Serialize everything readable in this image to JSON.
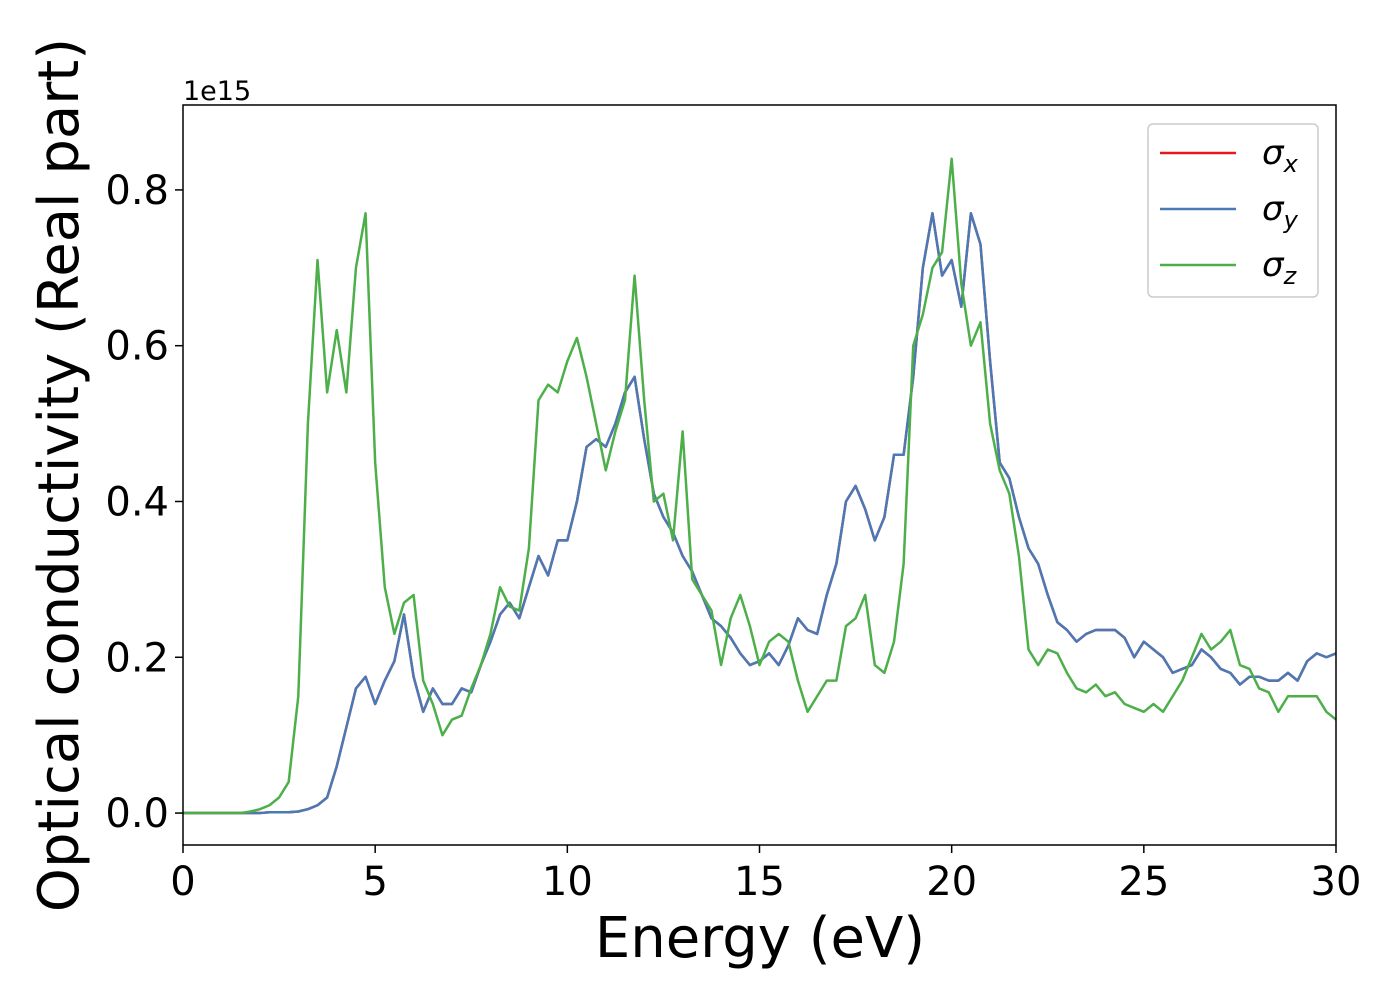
{
  "chart_data": {
    "type": "line",
    "xlabel": "Energy (eV)",
    "ylabel": "Optical conductivity (Real part)",
    "y_offset_label": "1e15",
    "xlim": [
      0,
      30
    ],
    "xticks": [
      0,
      5,
      10,
      15,
      20,
      25,
      30
    ],
    "ylim": [
      -0.041,
      0.909
    ],
    "yticks": [
      {
        "value": 0,
        "label": "0.0"
      },
      0.2,
      0.4,
      0.6,
      0.8
    ],
    "legend": "upper right",
    "grid": false,
    "x": [
      0,
      0.25,
      0.5,
      0.75,
      1,
      1.25,
      1.5,
      1.75,
      2,
      2.25,
      2.5,
      2.75,
      3,
      3.25,
      3.5,
      3.75,
      4,
      4.25,
      4.5,
      4.75,
      5,
      5.25,
      5.5,
      5.75,
      6,
      6.25,
      6.5,
      6.75,
      7,
      7.25,
      7.5,
      7.75,
      8,
      8.25,
      8.5,
      8.75,
      9,
      9.25,
      9.5,
      9.75,
      10,
      10.25,
      10.5,
      10.75,
      11,
      11.25,
      11.5,
      11.75,
      12,
      12.25,
      12.5,
      12.75,
      13,
      13.25,
      13.5,
      13.75,
      14,
      14.25,
      14.5,
      14.75,
      15,
      15.25,
      15.5,
      15.75,
      16,
      16.25,
      16.5,
      16.75,
      17,
      17.25,
      17.5,
      17.75,
      18,
      18.25,
      18.5,
      18.75,
      19,
      19.25,
      19.5,
      19.75,
      20,
      20.25,
      20.5,
      20.75,
      21,
      21.25,
      21.5,
      21.75,
      22,
      22.25,
      22.5,
      22.75,
      23,
      23.25,
      23.5,
      23.75,
      24,
      24.25,
      24.5,
      24.75,
      25,
      25.25,
      25.5,
      25.75,
      26,
      26.25,
      26.5,
      26.75,
      27,
      27.25,
      27.5,
      27.75,
      28,
      28.25,
      28.5,
      28.75,
      29,
      29.25,
      29.5,
      29.75,
      30
    ],
    "series": [
      {
        "name": "σx",
        "color": "#e41a1c",
        "values": [
          0,
          0,
          0,
          0,
          0,
          0,
          0,
          0,
          0,
          0.001,
          0.001,
          0.001,
          0.002,
          0.005,
          0.01,
          0.02,
          0.06,
          0.11,
          0.16,
          0.175,
          0.14,
          0.17,
          0.195,
          0.255,
          0.175,
          0.13,
          0.16,
          0.14,
          0.14,
          0.16,
          0.155,
          0.19,
          0.22,
          0.255,
          0.27,
          0.25,
          0.29,
          0.33,
          0.305,
          0.35,
          0.35,
          0.4,
          0.47,
          0.48,
          0.47,
          0.5,
          0.54,
          0.56,
          0.48,
          0.41,
          0.38,
          0.36,
          0.33,
          0.31,
          0.28,
          0.25,
          0.24,
          0.225,
          0.205,
          0.19,
          0.195,
          0.205,
          0.19,
          0.215,
          0.25,
          0.235,
          0.23,
          0.28,
          0.32,
          0.4,
          0.42,
          0.39,
          0.35,
          0.38,
          0.46,
          0.46,
          0.56,
          0.7,
          0.77,
          0.69,
          0.71,
          0.65,
          0.77,
          0.73,
          0.58,
          0.45,
          0.43,
          0.38,
          0.34,
          0.32,
          0.28,
          0.245,
          0.235,
          0.22,
          0.23,
          0.235,
          0.235,
          0.235,
          0.225,
          0.2,
          0.22,
          0.21,
          0.2,
          0.18,
          0.185,
          0.19,
          0.21,
          0.2,
          0.185,
          0.18,
          0.165,
          0.175,
          0.175,
          0.17,
          0.17,
          0.18,
          0.17,
          0.195,
          0.205,
          0.2,
          0.205
        ]
      },
      {
        "name": "σy",
        "color": "#4a7ab5",
        "values": [
          0,
          0,
          0,
          0,
          0,
          0,
          0,
          0,
          0,
          0.001,
          0.001,
          0.001,
          0.002,
          0.005,
          0.01,
          0.02,
          0.06,
          0.11,
          0.16,
          0.175,
          0.14,
          0.17,
          0.195,
          0.255,
          0.175,
          0.13,
          0.16,
          0.14,
          0.14,
          0.16,
          0.155,
          0.19,
          0.22,
          0.255,
          0.27,
          0.25,
          0.29,
          0.33,
          0.305,
          0.35,
          0.35,
          0.4,
          0.47,
          0.48,
          0.47,
          0.5,
          0.54,
          0.56,
          0.48,
          0.41,
          0.38,
          0.36,
          0.33,
          0.31,
          0.28,
          0.25,
          0.24,
          0.225,
          0.205,
          0.19,
          0.195,
          0.205,
          0.19,
          0.215,
          0.25,
          0.235,
          0.23,
          0.28,
          0.32,
          0.4,
          0.42,
          0.39,
          0.35,
          0.38,
          0.46,
          0.46,
          0.56,
          0.7,
          0.77,
          0.69,
          0.71,
          0.65,
          0.77,
          0.73,
          0.58,
          0.45,
          0.43,
          0.38,
          0.34,
          0.32,
          0.28,
          0.245,
          0.235,
          0.22,
          0.23,
          0.235,
          0.235,
          0.235,
          0.225,
          0.2,
          0.22,
          0.21,
          0.2,
          0.18,
          0.185,
          0.19,
          0.21,
          0.2,
          0.185,
          0.18,
          0.165,
          0.175,
          0.175,
          0.17,
          0.17,
          0.18,
          0.17,
          0.195,
          0.205,
          0.2,
          0.205
        ]
      },
      {
        "name": "σz",
        "color": "#4daf4a",
        "values": [
          0,
          0,
          0,
          0,
          0,
          0,
          0,
          0.002,
          0.005,
          0.01,
          0.02,
          0.04,
          0.15,
          0.5,
          0.71,
          0.54,
          0.62,
          0.54,
          0.7,
          0.77,
          0.45,
          0.29,
          0.23,
          0.27,
          0.28,
          0.17,
          0.14,
          0.1,
          0.12,
          0.125,
          0.16,
          0.19,
          0.23,
          0.29,
          0.265,
          0.26,
          0.34,
          0.53,
          0.55,
          0.54,
          0.58,
          0.61,
          0.56,
          0.5,
          0.44,
          0.49,
          0.53,
          0.69,
          0.53,
          0.4,
          0.41,
          0.35,
          0.49,
          0.3,
          0.28,
          0.26,
          0.19,
          0.25,
          0.28,
          0.24,
          0.19,
          0.22,
          0.23,
          0.22,
          0.17,
          0.13,
          0.15,
          0.17,
          0.17,
          0.24,
          0.25,
          0.28,
          0.19,
          0.18,
          0.22,
          0.32,
          0.6,
          0.64,
          0.7,
          0.72,
          0.84,
          0.68,
          0.6,
          0.63,
          0.5,
          0.44,
          0.41,
          0.33,
          0.21,
          0.19,
          0.21,
          0.205,
          0.18,
          0.16,
          0.155,
          0.165,
          0.15,
          0.155,
          0.14,
          0.135,
          0.13,
          0.14,
          0.13,
          0.15,
          0.17,
          0.2,
          0.23,
          0.21,
          0.22,
          0.235,
          0.19,
          0.185,
          0.16,
          0.155,
          0.13,
          0.15,
          0.15,
          0.15,
          0.15,
          0.13,
          0.12
        ]
      }
    ]
  }
}
